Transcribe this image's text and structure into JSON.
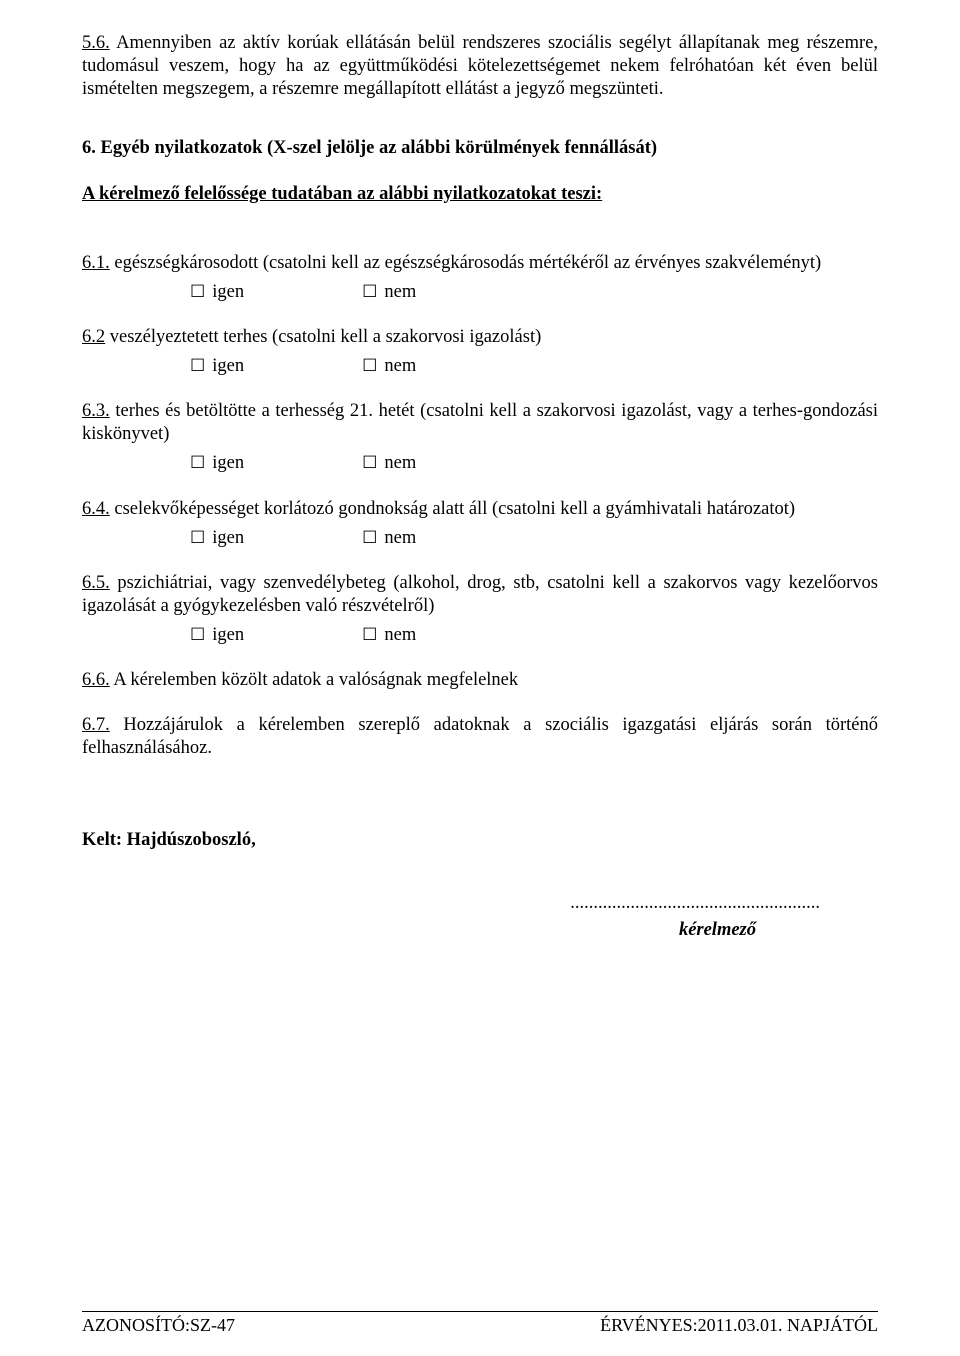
{
  "p56": {
    "num": "5.6.",
    "text": " Amennyiben az aktív korúak ellátásán belül rendszeres szociális segélyt állapítanak meg részemre, tudomásul veszem, hogy ha az együttműködési kötelezettségemet nekem felróhatóan két éven belül ismételten megszegem, a részemre megállapított ellátást a jegyző megszünteti."
  },
  "section6": {
    "heading": "6. Egyéb nyilatkozatok (X-szel jelölje az alábbi körülmények fennállását)",
    "intro_underline": "A kérelmező felelőssége tudatában az alábbi nyilatkozatokat teszi:"
  },
  "options": {
    "yes": "igen",
    "no": "nem"
  },
  "q61": {
    "num": "6.1.",
    "text": " egészségkárosodott (csatolni kell az egészségkárosodás mértékéről az érvényes szakvéleményt)"
  },
  "q62": {
    "num": "6.2",
    "text": " veszélyeztetett terhes (csatolni kell a szakorvosi igazolást)"
  },
  "q63": {
    "num": "6.3.",
    "text": " terhes és betöltötte a terhesség 21. hetét (csatolni kell a szakorvosi igazolást, vagy a terhes-gondozási kiskönyvet)"
  },
  "q64": {
    "num": "6.4.",
    "text": " cselekvőképességet korlátozó gondnokság alatt áll (csatolni kell a gyámhivatali határozatot)"
  },
  "q65": {
    "num": "6.5.",
    "text": " pszichiátriai, vagy szenvedélybeteg (alkohol, drog, stb, csatolni kell a szakorvos vagy kezelőorvos igazolását a gyógykezelésben való részvételről)"
  },
  "q66": {
    "num": "6.6.",
    "text": " A kérelemben közölt adatok a valóságnak megfelelnek"
  },
  "q67": {
    "num": "6.7.",
    "text": " Hozzájárulok a kérelemben szereplő adatoknak a szociális igazgatási eljárás során történő felhasználásához."
  },
  "kelt": {
    "label": "Kelt: Hajdúszoboszló,"
  },
  "signature": {
    "dots": "......................................................",
    "label": "kérelmező"
  },
  "footer": {
    "left": "AZONOSÍTÓ:SZ-47",
    "right": "ÉRVÉNYES:2011.03.01. NAPJÁTÓL"
  }
}
